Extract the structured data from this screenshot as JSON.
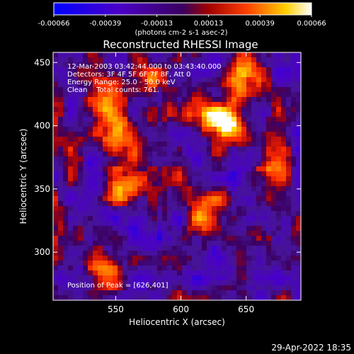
{
  "chart_data": {
    "type": "heatmap",
    "title": "Reconstructed RHESSI Image",
    "xlabel": "Heliocentric X (arcsec)",
    "ylabel": "Heliocentric Y (arcsec)",
    "xlim": [
      502,
      692
    ],
    "ylim": [
      262,
      458
    ],
    "xticks": [
      550,
      600,
      650
    ],
    "yticks": [
      300,
      350,
      400,
      450
    ],
    "colorbar": {
      "min": -0.00066,
      "max": 0.00066,
      "ticks": [
        "-0.00066",
        "-0.00039",
        "-0.00013",
        "0.00013",
        "0.00039",
        "0.00066"
      ],
      "unit_label": "(photons cm-2 s-1 asec-2)"
    },
    "annotations": {
      "time": "12-Mar-2003 03:42:44.000 to 03:43:40.000",
      "detectors": "Detectors: 3F 4F 5F 6F 7F 8F, Att 0",
      "energy": "Energy Range: 25.0 - 50.0 keV",
      "method": "Clean    Total counts: 761.",
      "peak": "Position of Peak = [626,401]"
    },
    "bright_sources": [
      {
        "x": 632,
        "y": 402,
        "value": 0.00066
      },
      {
        "x": 552,
        "y": 392,
        "value": 0.0005
      },
      {
        "x": 560,
        "y": 350,
        "value": 0.00045
      },
      {
        "x": 540,
        "y": 420,
        "value": 0.00035
      },
      {
        "x": 578,
        "y": 438,
        "value": 0.0004
      },
      {
        "x": 620,
        "y": 330,
        "value": 0.0003
      },
      {
        "x": 672,
        "y": 372,
        "value": 0.00035
      },
      {
        "x": 545,
        "y": 285,
        "value": 0.00038
      },
      {
        "x": 645,
        "y": 440,
        "value": 0.00025
      }
    ]
  },
  "footer": {
    "date": "29-Apr-2022 18:35"
  },
  "colors": {
    "positive_scale": "hot",
    "negative_scale": "blue"
  }
}
